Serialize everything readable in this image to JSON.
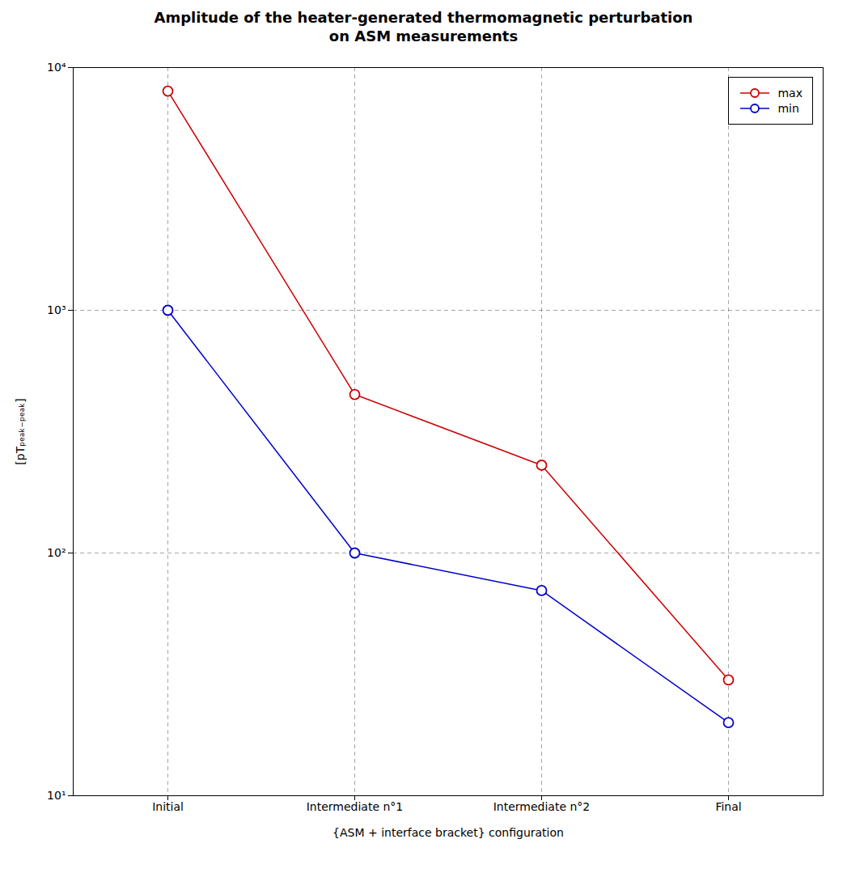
{
  "chart_data": {
    "type": "line",
    "title": "Amplitude of the heater-generated thermomagnetic perturbation\non ASM measurements",
    "xlabel": "{ASM + interface bracket} configuration",
    "ylabel": "[pTₚₑₐₖ₋ₚₑₐₖ]",
    "categories": [
      "Initial",
      "Intermediate n°1",
      "Intermediate n°2",
      "Final"
    ],
    "series": [
      {
        "name": "max",
        "color": "#cc0000",
        "marker": "circle",
        "values": [
          8000,
          450,
          230,
          30
        ]
      },
      {
        "name": "min",
        "color": "#0000cc",
        "marker": "circle",
        "values": [
          1000,
          100,
          70,
          20
        ]
      }
    ],
    "log": "y",
    "ylim": [
      10,
      10000
    ],
    "yticks": [
      {
        "value": 10,
        "label": "10¹"
      },
      {
        "value": 100,
        "label": "10²"
      },
      {
        "value": 1000,
        "label": "10³"
      },
      {
        "value": 10000,
        "label": "10⁴"
      }
    ],
    "grid": true,
    "legend": "upper right"
  }
}
